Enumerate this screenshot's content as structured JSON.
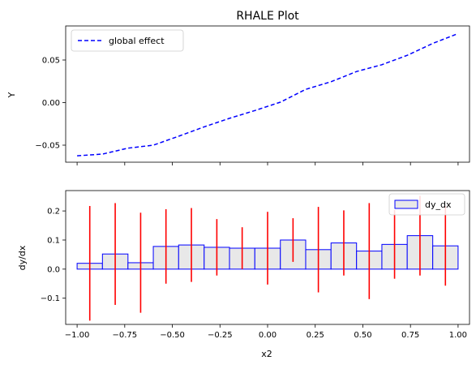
{
  "chart_data": [
    {
      "type": "line",
      "title": "RHALE Plot",
      "xlabel": "",
      "ylabel": "Y",
      "xlim": [
        -1.06,
        1.06
      ],
      "ylim": [
        -0.07,
        0.09
      ],
      "xticks": [
        -1.0,
        -0.75,
        -0.5,
        -0.25,
        0.0,
        0.25,
        0.5,
        0.75,
        1.0
      ],
      "xtick_labels_visible": false,
      "yticks": [
        -0.05,
        0.0,
        0.05
      ],
      "ytick_labels": [
        "−0.05",
        "0.00",
        "0.05"
      ],
      "grid": false,
      "legend": {
        "position": "top-left",
        "entries": [
          "global effect"
        ]
      },
      "series": [
        {
          "name": "global effect",
          "color": "#0000ff",
          "style": "dashed",
          "x": [
            -1.0,
            -0.867,
            -0.733,
            -0.6,
            -0.467,
            -0.333,
            -0.2,
            -0.067,
            0.067,
            0.2,
            0.333,
            0.467,
            0.6,
            0.733,
            0.867,
            1.0
          ],
          "y": [
            -0.0625,
            -0.0605,
            -0.0535,
            -0.05,
            -0.0395,
            -0.0285,
            -0.0185,
            -0.0093,
            0.0005,
            0.0155,
            0.0245,
            0.0365,
            0.0445,
            0.0555,
            0.0695,
            0.081
          ]
        }
      ]
    },
    {
      "type": "bar",
      "title": "",
      "xlabel": "x2",
      "ylabel": "dy/dx",
      "xlim": [
        -1.06,
        1.06
      ],
      "ylim": [
        -0.19,
        0.27
      ],
      "xticks": [
        -1.0,
        -0.75,
        -0.5,
        -0.25,
        0.0,
        0.25,
        0.5,
        0.75,
        1.0
      ],
      "xtick_labels": [
        "−1.00",
        "−0.75",
        "−0.50",
        "−0.25",
        "0.00",
        "0.25",
        "0.50",
        "0.75",
        "1.00"
      ],
      "yticks": [
        -0.1,
        0.0,
        0.1,
        0.2
      ],
      "ytick_labels": [
        "−0.1",
        "0.0",
        "0.1",
        "0.2"
      ],
      "grid": false,
      "legend": {
        "position": "top-right",
        "entries": [
          "dy_dx"
        ]
      },
      "bar_fill": "#e8e8e8",
      "bar_edge": "#0000ff",
      "errorbar_color": "#ff0000",
      "bin_edges": [
        -1.0,
        -0.867,
        -0.733,
        -0.6,
        -0.467,
        -0.333,
        -0.2,
        -0.067,
        0.067,
        0.2,
        0.333,
        0.467,
        0.6,
        0.733,
        0.867,
        1.0
      ],
      "series": [
        {
          "name": "dy_dx",
          "values": [
            0.02,
            0.052,
            0.022,
            0.078,
            0.083,
            0.075,
            0.072,
            0.072,
            0.1,
            0.067,
            0.09,
            0.062,
            0.085,
            0.115,
            0.08
          ],
          "errors": [
            0.197,
            0.175,
            0.172,
            0.128,
            0.127,
            0.097,
            0.072,
            0.125,
            0.075,
            0.147,
            0.112,
            0.165,
            0.118,
            0.137,
            0.137
          ]
        }
      ]
    }
  ]
}
